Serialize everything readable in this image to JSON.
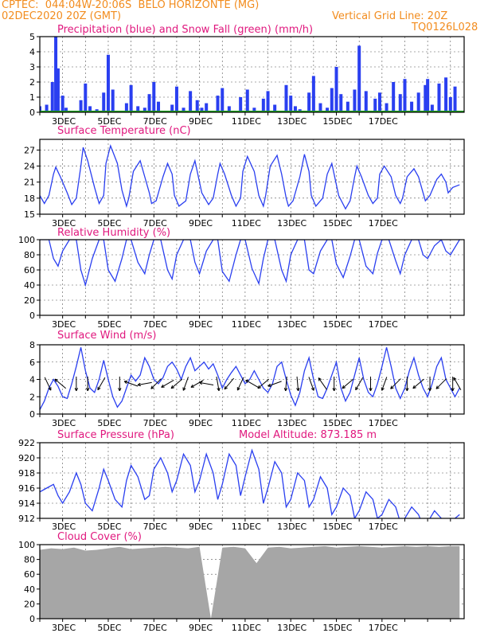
{
  "header": {
    "line1": "CPTEC:  044:04W-20:06S  BELO HORIZONTE (MG)",
    "line2_left": "02DEC2020 20Z (GMT)",
    "line2_right": "Vertical Grid Line: 20Z",
    "code": "TQ0126L028"
  },
  "colors": {
    "header": "#f28c1e",
    "title": "#e0187e",
    "precip": "#2a3ff0",
    "snow": "#1fa21f",
    "line": "#2a3ff0",
    "cloud": "#a6a6a6"
  },
  "x_ticks": [
    "3DEC",
    "5DEC",
    "7DEC",
    "9DEC",
    "11DEC",
    "13DEC",
    "15DEC",
    "17DEC"
  ],
  "chart_data": [
    {
      "type": "bar",
      "title": "Precipitation (blue) and Snow Fall (green) (mm/h)",
      "xlabel": "",
      "ylabel": "",
      "ylim": [
        0,
        5
      ],
      "yticks": [
        0,
        1,
        2,
        3,
        4,
        5
      ],
      "x_start": "02DEC2020 20Z",
      "x_end": "17DEC2020 00Z",
      "x_days": [
        0.0,
        0.3,
        0.55,
        0.7,
        0.8,
        1.0,
        1.15,
        1.8,
        2.0,
        2.2,
        2.5,
        2.8,
        3.0,
        3.2,
        3.8,
        4.0,
        4.3,
        4.6,
        4.8,
        5.0,
        5.2,
        5.8,
        6.0,
        6.3,
        6.6,
        6.9,
        7.1,
        7.3,
        7.8,
        8.0,
        8.3,
        8.8,
        9.1,
        9.4,
        9.8,
        10.0,
        10.3,
        10.8,
        11.0,
        11.2,
        11.4,
        11.8,
        12.0,
        12.3,
        12.6,
        12.8,
        13.0,
        13.2,
        13.5,
        13.8,
        14.0,
        14.3,
        14.7,
        14.9,
        15.2,
        15.5,
        15.8,
        16.0,
        16.3,
        16.6,
        16.9,
        17.0,
        17.2,
        17.5,
        17.8,
        18.0,
        18.2
      ],
      "values": [
        0.4,
        0.5,
        2.0,
        5.0,
        2.9,
        1.1,
        0.3,
        0.8,
        1.9,
        0.4,
        0.2,
        1.3,
        3.8,
        1.5,
        0.6,
        1.8,
        0.4,
        0.3,
        1.2,
        2.0,
        0.7,
        0.5,
        1.7,
        0.3,
        1.4,
        0.8,
        0.3,
        0.6,
        1.1,
        1.6,
        0.4,
        1.0,
        1.5,
        0.3,
        0.9,
        1.4,
        0.5,
        1.8,
        1.1,
        0.4,
        0.2,
        1.3,
        2.4,
        0.6,
        0.3,
        1.6,
        3.0,
        1.2,
        0.7,
        1.5,
        4.4,
        1.4,
        0.9,
        1.3,
        0.6,
        2.0,
        1.2,
        2.2,
        0.7,
        1.3,
        1.8,
        2.2,
        0.5,
        1.9,
        2.3,
        1.0,
        1.7
      ],
      "snow": 0
    },
    {
      "type": "line",
      "title": "Surface Temperature (nC)",
      "ylim": [
        15,
        29
      ],
      "yticks": [
        15,
        18,
        21,
        24,
        27
      ],
      "x_days": [
        0.0,
        0.2,
        0.4,
        0.6,
        0.7,
        0.9,
        1.2,
        1.4,
        1.6,
        1.8,
        1.9,
        2.1,
        2.4,
        2.6,
        2.8,
        2.9,
        3.1,
        3.4,
        3.6,
        3.8,
        3.9,
        4.1,
        4.4,
        4.6,
        4.8,
        4.9,
        5.1,
        5.4,
        5.6,
        5.8,
        5.9,
        6.1,
        6.4,
        6.6,
        6.8,
        6.9,
        7.1,
        7.4,
        7.6,
        7.8,
        7.9,
        8.1,
        8.4,
        8.6,
        8.8,
        8.9,
        9.1,
        9.4,
        9.6,
        9.8,
        9.9,
        10.1,
        10.4,
        10.6,
        10.8,
        10.9,
        11.1,
        11.4,
        11.6,
        11.8,
        11.9,
        12.1,
        12.4,
        12.6,
        12.8,
        12.9,
        13.1,
        13.4,
        13.6,
        13.8,
        13.9,
        14.1,
        14.4,
        14.6,
        14.8,
        14.9,
        15.1,
        15.4,
        15.6,
        15.8,
        15.9,
        16.1,
        16.4,
        16.6,
        16.8,
        16.9,
        17.1,
        17.4,
        17.6,
        17.8,
        17.9,
        18.1,
        18.4
      ],
      "values": [
        18.5,
        17.0,
        18.5,
        22.5,
        23.8,
        22.0,
        19.0,
        16.8,
        18.0,
        24.0,
        27.5,
        25.0,
        20.0,
        17.0,
        18.5,
        24.5,
        27.8,
        24.5,
        19.5,
        16.5,
        18.0,
        23.0,
        25.0,
        22.0,
        19.0,
        17.0,
        17.5,
        22.0,
        24.5,
        22.5,
        18.5,
        16.5,
        17.5,
        22.5,
        25.0,
        23.0,
        19.0,
        16.8,
        18.0,
        22.5,
        24.5,
        22.5,
        18.5,
        16.5,
        18.0,
        23.0,
        25.8,
        23.0,
        18.5,
        16.5,
        18.5,
        24.0,
        26.0,
        22.5,
        18.0,
        16.5,
        17.5,
        22.0,
        26.2,
        23.0,
        18.5,
        16.5,
        18.0,
        22.5,
        24.5,
        22.5,
        18.5,
        16.0,
        17.5,
        22.0,
        24.0,
        22.0,
        18.5,
        17.0,
        18.0,
        22.5,
        24.0,
        22.0,
        18.5,
        17.0,
        18.0,
        22.0,
        23.5,
        22.0,
        19.0,
        17.5,
        18.5,
        21.5,
        22.5,
        21.0,
        19.0,
        20.0,
        20.5
      ]
    },
    {
      "type": "line",
      "title": "Relative Humidity (%)",
      "ylim": [
        0,
        100
      ],
      "yticks": [
        0,
        20,
        40,
        60,
        80,
        100
      ],
      "x_days": [
        0.0,
        0.4,
        0.6,
        0.8,
        1.0,
        1.3,
        1.6,
        1.8,
        2.0,
        2.3,
        2.6,
        2.8,
        3.0,
        3.3,
        3.6,
        3.8,
        4.0,
        4.3,
        4.6,
        4.8,
        5.0,
        5.3,
        5.6,
        5.8,
        6.0,
        6.3,
        6.6,
        6.8,
        7.0,
        7.3,
        7.6,
        7.8,
        8.0,
        8.3,
        8.6,
        8.8,
        9.0,
        9.3,
        9.6,
        9.8,
        10.0,
        10.3,
        10.6,
        10.8,
        11.0,
        11.3,
        11.6,
        11.8,
        12.0,
        12.3,
        12.6,
        12.8,
        13.0,
        13.3,
        13.6,
        13.8,
        14.0,
        14.3,
        14.6,
        14.8,
        15.0,
        15.3,
        15.6,
        15.8,
        16.0,
        16.3,
        16.6,
        16.8,
        17.0,
        17.3,
        17.6,
        17.8,
        18.0,
        18.4
      ],
      "values": [
        100,
        100,
        75,
        65,
        85,
        100,
        100,
        60,
        40,
        75,
        100,
        100,
        60,
        45,
        75,
        100,
        100,
        70,
        55,
        80,
        100,
        100,
        60,
        48,
        80,
        100,
        100,
        70,
        55,
        85,
        100,
        100,
        58,
        45,
        80,
        100,
        100,
        62,
        42,
        75,
        100,
        100,
        60,
        45,
        80,
        100,
        100,
        60,
        55,
        85,
        100,
        100,
        68,
        50,
        78,
        100,
        100,
        65,
        55,
        82,
        100,
        100,
        72,
        55,
        80,
        100,
        100,
        80,
        75,
        92,
        100,
        85,
        80,
        100
      ]
    },
    {
      "type": "line",
      "title": "Surface Wind (m/s)",
      "ylim": [
        0,
        8
      ],
      "yticks": [
        0,
        2,
        4,
        6,
        8
      ],
      "x_days": [
        0.0,
        0.2,
        0.4,
        0.6,
        0.8,
        1.0,
        1.2,
        1.4,
        1.6,
        1.8,
        2.0,
        2.2,
        2.4,
        2.6,
        2.8,
        3.0,
        3.2,
        3.4,
        3.6,
        3.8,
        4.0,
        4.2,
        4.4,
        4.6,
        4.8,
        5.0,
        5.2,
        5.4,
        5.6,
        5.8,
        6.0,
        6.2,
        6.4,
        6.6,
        6.8,
        7.0,
        7.2,
        7.4,
        7.6,
        7.8,
        8.0,
        8.2,
        8.4,
        8.6,
        8.8,
        9.0,
        9.2,
        9.4,
        9.6,
        9.8,
        10.0,
        10.2,
        10.4,
        10.6,
        10.8,
        11.0,
        11.2,
        11.4,
        11.6,
        11.8,
        12.0,
        12.2,
        12.4,
        12.6,
        12.8,
        13.0,
        13.2,
        13.4,
        13.6,
        13.8,
        14.0,
        14.2,
        14.4,
        14.6,
        14.8,
        15.0,
        15.2,
        15.4,
        15.6,
        15.8,
        16.0,
        16.2,
        16.4,
        16.6,
        16.8,
        17.0,
        17.2,
        17.4,
        17.6,
        17.8,
        18.0,
        18.2,
        18.4
      ],
      "values": [
        0.5,
        1.5,
        3.0,
        4.0,
        3.2,
        2.0,
        1.8,
        3.5,
        5.5,
        7.7,
        5.0,
        3.0,
        2.5,
        4.0,
        6.2,
        4.0,
        2.0,
        0.8,
        1.5,
        3.0,
        4.5,
        3.8,
        4.5,
        6.5,
        5.5,
        4.0,
        3.5,
        4.2,
        5.5,
        6.0,
        5.2,
        4.0,
        5.5,
        6.5,
        5.0,
        5.5,
        6.0,
        5.2,
        5.8,
        4.5,
        3.0,
        4.0,
        4.8,
        5.5,
        4.5,
        3.5,
        4.0,
        5.0,
        4.0,
        3.0,
        2.5,
        3.5,
        5.5,
        6.0,
        4.0,
        2.2,
        1.0,
        2.5,
        5.0,
        6.5,
        4.0,
        2.0,
        1.8,
        3.0,
        4.5,
        6.0,
        3.0,
        1.5,
        2.5,
        4.5,
        6.5,
        4.0,
        2.5,
        2.0,
        3.5,
        5.5,
        7.7,
        5.5,
        3.0,
        1.8,
        3.0,
        5.0,
        6.5,
        4.5,
        3.0,
        2.0,
        3.5,
        5.5,
        6.5,
        4.0,
        3.0,
        2.0,
        3.0
      ],
      "arrows_x_days": [
        0.35,
        0.9,
        1.6,
        2.1,
        2.7,
        3.5,
        4.0,
        4.6,
        5.1,
        5.6,
        6.0,
        6.4,
        6.9,
        7.3,
        7.8,
        8.3,
        8.8,
        9.3,
        9.8,
        10.3,
        10.8,
        11.3,
        11.9,
        12.4,
        12.9,
        13.5,
        14.0,
        14.5,
        15.1,
        15.6,
        16.1,
        16.6,
        17.1,
        17.6,
        18.1,
        18.3
      ],
      "arrows_dir": [
        155,
        310,
        180,
        180,
        210,
        180,
        290,
        260,
        225,
        240,
        230,
        200,
        240,
        280,
        170,
        220,
        205,
        300,
        230,
        250,
        185,
        175,
        160,
        325,
        180,
        230,
        210,
        180,
        200,
        225,
        180,
        230,
        180,
        225,
        180,
        330
      ]
    },
    {
      "type": "line",
      "title": "Surface Pressure (hPa)",
      "annotation": "Model Altitude: 873.185 m",
      "ylim": [
        912,
        922
      ],
      "yticks": [
        912,
        914,
        916,
        918,
        920,
        922
      ],
      "x_days": [
        0.0,
        0.3,
        0.6,
        0.8,
        1.0,
        1.3,
        1.6,
        1.8,
        2.0,
        2.3,
        2.6,
        2.8,
        3.0,
        3.3,
        3.6,
        3.8,
        4.0,
        4.3,
        4.6,
        4.8,
        5.0,
        5.3,
        5.6,
        5.8,
        6.0,
        6.3,
        6.6,
        6.8,
        7.0,
        7.3,
        7.6,
        7.8,
        8.0,
        8.3,
        8.6,
        8.8,
        9.0,
        9.3,
        9.6,
        9.8,
        10.0,
        10.3,
        10.6,
        10.8,
        11.0,
        11.3,
        11.6,
        11.8,
        12.0,
        12.3,
        12.6,
        12.8,
        13.0,
        13.3,
        13.6,
        13.8,
        14.0,
        14.3,
        14.6,
        14.8,
        15.0,
        15.3,
        15.6,
        15.8,
        16.0,
        16.3,
        16.6,
        16.8,
        17.0,
        17.3,
        17.6,
        17.8,
        18.0,
        18.4
      ],
      "values": [
        915.5,
        916.0,
        916.5,
        915.0,
        914.0,
        915.5,
        918.0,
        916.5,
        914.0,
        913.0,
        916.0,
        918.5,
        917.0,
        914.5,
        913.5,
        917.0,
        919.0,
        917.5,
        914.5,
        915.0,
        918.5,
        920.0,
        918.0,
        915.5,
        917.0,
        920.5,
        919.0,
        915.5,
        917.0,
        920.5,
        918.0,
        914.5,
        916.5,
        920.5,
        919.0,
        915.0,
        917.5,
        921.0,
        918.5,
        914.0,
        916.0,
        919.5,
        918.0,
        913.5,
        914.5,
        918.0,
        917.0,
        913.5,
        914.5,
        917.5,
        916.0,
        912.5,
        913.5,
        916.0,
        915.0,
        912.0,
        913.0,
        915.5,
        914.5,
        912.0,
        912.5,
        914.5,
        913.5,
        911.5,
        912.0,
        913.5,
        912.5,
        911.0,
        911.5,
        913.0,
        912.0,
        911.0,
        911.5,
        912.5
      ]
    },
    {
      "type": "area",
      "title": "Cloud Cover (%)",
      "ylim": [
        0,
        100
      ],
      "yticks": [
        0,
        20,
        40,
        60,
        80,
        100
      ],
      "x_days": [
        0.0,
        0.5,
        1.0,
        1.5,
        2.0,
        2.5,
        3.0,
        3.5,
        4.0,
        4.5,
        5.0,
        5.5,
        6.0,
        6.5,
        7.0,
        7.5,
        8.0,
        8.5,
        9.0,
        9.5,
        10.0,
        10.5,
        11.0,
        11.5,
        12.0,
        12.5,
        13.0,
        13.5,
        14.0,
        14.5,
        15.0,
        15.5,
        16.0,
        16.5,
        17.0,
        17.5,
        18.0,
        18.4
      ],
      "values": [
        93,
        95,
        94,
        96,
        92,
        93,
        95,
        97,
        94,
        95,
        96,
        97,
        96,
        95,
        97,
        0,
        96,
        97,
        95,
        75,
        96,
        97,
        95,
        96,
        97,
        98,
        96,
        97,
        98,
        97,
        96,
        97,
        98,
        97,
        98,
        97,
        98,
        98
      ]
    }
  ]
}
